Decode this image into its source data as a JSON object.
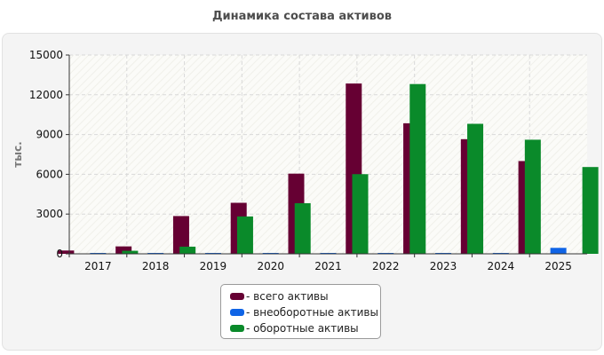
{
  "chart_data": {
    "type": "bar",
    "title": "Динамика состава активов",
    "ylabel": "тыс.",
    "xlabel": "",
    "categories": [
      "2017",
      "2018",
      "2019",
      "2020",
      "2021",
      "2022",
      "2023",
      "2024",
      "2025"
    ],
    "ylim": [
      0,
      15000
    ],
    "yticks": [
      "0",
      "3000",
      "6000",
      "9000",
      "12000",
      "15000"
    ],
    "grid": true,
    "legend_position": "bottom",
    "series": [
      {
        "name": "- всего активы",
        "color": "#660033",
        "values": [
          250,
          560,
          2850,
          3850,
          6050,
          12850,
          9850,
          8650,
          7000
        ]
      },
      {
        "name": "- внеоборотные активы",
        "color": "#0f64e6",
        "values": [
          20,
          20,
          30,
          30,
          40,
          40,
          40,
          40,
          450
        ]
      },
      {
        "name": "- оборотные активы",
        "color": "#0a8a2a",
        "values": [
          230,
          540,
          2820,
          3820,
          6010,
          12810,
          9810,
          8610,
          6550
        ]
      }
    ]
  }
}
